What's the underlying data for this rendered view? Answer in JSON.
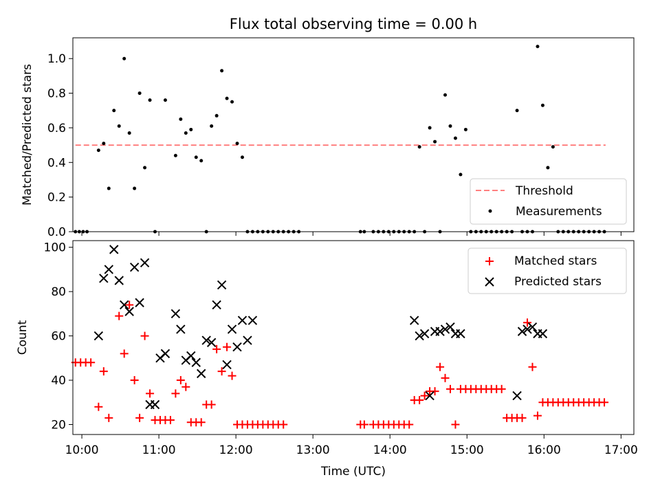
{
  "colors": {
    "matched": "#ff0000",
    "predicted": "#000000",
    "threshold": "#ff7f7f",
    "measurement": "#000000"
  },
  "chart_data": [
    {
      "type": "scatter",
      "title": "Flux total observing time = 0.00 h",
      "xlabel": "",
      "ylabel": "Matched/Predicted stars",
      "xlim": [
        "09:53",
        "17:10"
      ],
      "ylim": [
        0.0,
        1.12
      ],
      "yticks": [
        "0.0",
        "0.2",
        "0.4",
        "0.6",
        "0.8",
        "1.0"
      ],
      "legend": {
        "position": "bottom-right",
        "entries": [
          "Threshold",
          "Measurements"
        ]
      },
      "threshold": {
        "name": "Threshold",
        "value": 0.5,
        "x_range": [
          "09:55",
          "16:48"
        ]
      },
      "series": [
        {
          "name": "Measurements",
          "x": [
            "09:55",
            "09:58",
            "10:01",
            "10:04",
            "10:13",
            "10:17",
            "10:21",
            "10:25",
            "10:29",
            "10:33",
            "10:37",
            "10:41",
            "10:45",
            "10:49",
            "10:53",
            "10:57",
            "11:05",
            "11:13",
            "11:17",
            "11:21",
            "11:25",
            "11:29",
            "11:33",
            "11:37",
            "11:41",
            "11:45",
            "11:49",
            "11:53",
            "11:57",
            "12:01",
            "12:05",
            "12:09",
            "12:13",
            "12:17",
            "12:21",
            "12:25",
            "12:29",
            "12:33",
            "12:37",
            "12:41",
            "12:45",
            "12:49",
            "13:37",
            "13:40",
            "13:47",
            "13:51",
            "13:55",
            "13:59",
            "14:03",
            "14:07",
            "14:11",
            "14:15",
            "14:19",
            "14:23",
            "14:27",
            "14:31",
            "14:35",
            "14:39",
            "14:43",
            "14:47",
            "14:51",
            "14:55",
            "14:59",
            "15:03",
            "15:07",
            "15:11",
            "15:15",
            "15:19",
            "15:23",
            "15:27",
            "15:31",
            "15:35",
            "15:39",
            "15:43",
            "15:47",
            "15:51",
            "15:55",
            "15:59",
            "16:03",
            "16:07",
            "16:11",
            "16:15",
            "16:19",
            "16:23",
            "16:27",
            "16:31",
            "16:35",
            "16:39",
            "16:43",
            "16:47"
          ],
          "y": [
            0,
            0,
            0,
            0,
            0.47,
            0.51,
            0.25,
            0.7,
            0.61,
            1.0,
            0.57,
            0.25,
            0.8,
            0.37,
            0.76,
            0,
            0.76,
            0.44,
            0.65,
            0.57,
            0.59,
            0.43,
            0.41,
            0,
            0.61,
            0.67,
            0.93,
            0.77,
            0.75,
            0.51,
            0.43,
            0,
            0,
            0,
            0,
            0,
            0,
            0,
            0,
            0,
            0,
            0,
            0,
            0,
            0,
            0,
            0,
            0,
            0,
            0,
            0,
            0,
            0,
            0.49,
            0,
            0.6,
            0.52,
            0,
            0.79,
            0.61,
            0.54,
            0.33,
            0.59,
            0,
            0,
            0,
            0,
            0,
            0,
            0,
            0,
            0,
            0.7,
            0,
            0,
            0,
            1.07,
            0.73,
            0.37,
            0.49,
            0,
            0,
            0,
            0,
            0,
            0,
            0,
            0,
            0,
            0
          ]
        }
      ]
    },
    {
      "type": "scatter",
      "title": "",
      "xlabel": "Time (UTC)",
      "ylabel": "Count",
      "xlim": [
        "09:53",
        "17:10"
      ],
      "ylim": [
        15.5,
        103
      ],
      "yticks": [
        "20",
        "40",
        "60",
        "80",
        "100"
      ],
      "xticks": [
        "10:00",
        "11:00",
        "12:00",
        "13:00",
        "14:00",
        "15:00",
        "16:00",
        "17:00"
      ],
      "legend": {
        "position": "top-right",
        "entries": [
          "Matched stars",
          "Predicted stars"
        ]
      },
      "series": [
        {
          "name": "Matched stars",
          "marker": "plus",
          "x": [
            "09:55",
            "09:59",
            "10:03",
            "10:07",
            "10:13",
            "10:17",
            "10:21",
            "10:29",
            "10:33",
            "10:37",
            "10:41",
            "10:45",
            "10:49",
            "10:53",
            "10:57",
            "11:01",
            "11:05",
            "11:09",
            "11:13",
            "11:17",
            "11:21",
            "11:25",
            "11:29",
            "11:33",
            "11:37",
            "11:41",
            "11:45",
            "11:49",
            "11:53",
            "11:57",
            "12:01",
            "12:05",
            "12:09",
            "12:13",
            "12:17",
            "12:21",
            "12:25",
            "12:29",
            "12:33",
            "12:37",
            "13:37",
            "13:40",
            "13:47",
            "13:51",
            "13:55",
            "13:59",
            "14:03",
            "14:07",
            "14:11",
            "14:15",
            "14:19",
            "14:23",
            "14:27",
            "14:31",
            "14:35",
            "14:39",
            "14:43",
            "14:47",
            "14:51",
            "14:55",
            "14:59",
            "15:03",
            "15:07",
            "15:11",
            "15:15",
            "15:19",
            "15:23",
            "15:27",
            "15:31",
            "15:35",
            "15:39",
            "15:43",
            "15:47",
            "15:51",
            "15:55",
            "15:59",
            "16:03",
            "16:07",
            "16:11",
            "16:15",
            "16:19",
            "16:23",
            "16:27",
            "16:31",
            "16:35",
            "16:39",
            "16:43",
            "16:47"
          ],
          "y": [
            48,
            48,
            48,
            48,
            28,
            44,
            23,
            69,
            52,
            74,
            40,
            23,
            60,
            34,
            22,
            22,
            22,
            22,
            34,
            40,
            37,
            21,
            21,
            21,
            29,
            29,
            54,
            44,
            55,
            42,
            20,
            20,
            20,
            20,
            20,
            20,
            20,
            20,
            20,
            20,
            20,
            20,
            20,
            20,
            20,
            20,
            20,
            20,
            20,
            20,
            31,
            31,
            33,
            35,
            35,
            46,
            41,
            36,
            20,
            36,
            36,
            36,
            36,
            36,
            36,
            36,
            36,
            36,
            23,
            23,
            23,
            23,
            66,
            46,
            24,
            30,
            30,
            30,
            30,
            30,
            30,
            30,
            30,
            30,
            30,
            30,
            30,
            30
          ]
        },
        {
          "name": "Predicted stars",
          "marker": "x",
          "x": [
            "10:13",
            "10:17",
            "10:21",
            "10:25",
            "10:29",
            "10:33",
            "10:37",
            "10:41",
            "10:45",
            "10:49",
            "10:53",
            "10:57",
            "11:01",
            "11:05",
            "11:13",
            "11:17",
            "11:21",
            "11:25",
            "11:29",
            "11:33",
            "11:37",
            "11:41",
            "11:45",
            "11:49",
            "11:53",
            "11:57",
            "12:01",
            "12:05",
            "12:09",
            "12:13",
            "14:19",
            "14:23",
            "14:27",
            "14:31",
            "14:35",
            "14:39",
            "14:43",
            "14:47",
            "14:51",
            "14:55",
            "15:39",
            "15:43",
            "15:47",
            "15:51",
            "15:55",
            "15:59"
          ],
          "y": [
            60,
            86,
            90,
            99,
            85,
            74,
            71,
            91,
            75,
            93,
            29,
            29,
            50,
            52,
            70,
            63,
            49,
            51,
            48,
            43,
            58,
            57,
            74,
            83,
            47,
            63,
            55,
            67,
            58,
            67,
            67,
            60,
            61,
            33,
            62,
            62,
            63,
            64,
            61,
            61,
            33,
            62,
            63,
            64,
            61,
            61
          ]
        }
      ]
    }
  ]
}
